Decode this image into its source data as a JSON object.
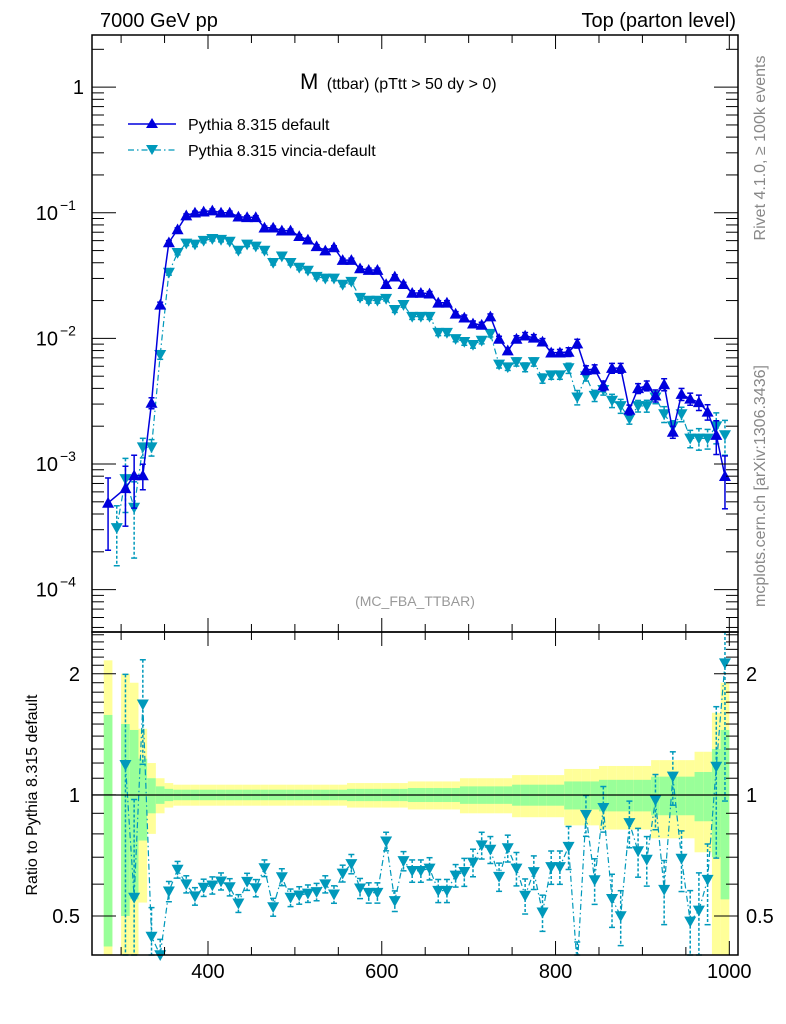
{
  "header": {
    "left": "7000 GeV pp",
    "right": "Top (parton level)"
  },
  "side_texts": {
    "rivet": "Rivet 4.1.0, ≥ 100k events",
    "mcplots": "mcplots.cern.ch [arXiv:1306.3436]"
  },
  "chart_data": {
    "type": "line",
    "title_main": "M",
    "title_sub": "(ttbar) (pTtt > 50 dy > 0)",
    "analysis_label": "(MC_FBA_TTBAR)",
    "xlabel": "",
    "ylabel": "",
    "ratio_ylabel": "Ratio to Pythia 8.315 default",
    "xlim": [
      266.5,
      1010
    ],
    "ylim": [
      4.6e-05,
      2.6
    ],
    "yscale": "log",
    "ratio_ylim": [
      0.4,
      2.54
    ],
    "x_ticks": [
      400,
      600,
      800,
      1000
    ],
    "x_tick_labels": [
      "400",
      "600",
      "800",
      "1000"
    ],
    "y_ticks": [
      1,
      0.1,
      0.01,
      0.001,
      0.0001
    ],
    "y_tick_labels": [
      {
        "base": "1",
        "exp": ""
      },
      {
        "base": "10",
        "exp": "−1"
      },
      {
        "base": "10",
        "exp": "−2"
      },
      {
        "base": "10",
        "exp": "−3"
      },
      {
        "base": "10",
        "exp": "−4"
      }
    ],
    "ratio_ticks": [
      2,
      1,
      0.5
    ],
    "ratio_tick_labels": [
      "2",
      "1",
      "0.5"
    ],
    "legend_position": "top-left",
    "x": [
      285,
      295,
      305,
      315,
      325,
      335,
      345,
      355,
      365,
      375,
      385,
      395,
      405,
      415,
      425,
      435,
      445,
      455,
      465,
      475,
      485,
      495,
      505,
      515,
      525,
      535,
      545,
      555,
      565,
      575,
      585,
      595,
      605,
      615,
      625,
      635,
      645,
      655,
      665,
      675,
      685,
      695,
      705,
      715,
      725,
      735,
      745,
      755,
      765,
      775,
      785,
      795,
      805,
      815,
      825,
      835,
      845,
      855,
      865,
      875,
      885,
      895,
      905,
      915,
      925,
      935,
      945,
      955,
      965,
      975,
      985,
      995
    ],
    "series": [
      {
        "name": "Pythia 8.315 default",
        "color": "#0000dd",
        "marker": "triangle-up",
        "line": "solid",
        "values": [
          0.00049,
          null,
          0.00064,
          0.00081,
          0.00081,
          0.00306,
          0.0185,
          0.058,
          0.0736,
          0.095,
          0.1,
          0.102,
          0.104,
          0.1,
          0.1,
          0.093,
          0.092,
          0.092,
          0.076,
          0.076,
          0.072,
          0.072,
          0.065,
          0.061,
          0.054,
          0.05,
          0.053,
          0.042,
          0.042,
          0.036,
          0.035,
          0.035,
          0.027,
          0.031,
          0.027,
          0.023,
          0.023,
          0.0227,
          0.0192,
          0.0192,
          0.0157,
          0.0146,
          0.0131,
          0.0128,
          0.0149,
          0.0099,
          0.008,
          0.0099,
          0.0105,
          0.0101,
          0.0094,
          0.0077,
          0.0077,
          0.0078,
          0.0091,
          0.0056,
          0.0057,
          0.0042,
          0.0058,
          0.0058,
          0.0027,
          0.004,
          0.0042,
          0.0035,
          0.0043,
          0.0018,
          0.0036,
          0.0033,
          0.0031,
          0.0026,
          0.0017,
          0.0008
        ],
        "rel_err": [
          0.58,
          null,
          0.5,
          0.45,
          0.23,
          0.1,
          0.05,
          0.035,
          0.03,
          0.03,
          0.03,
          0.03,
          0.03,
          0.03,
          0.03,
          0.03,
          0.03,
          0.03,
          0.03,
          0.03,
          0.03,
          0.03,
          0.03,
          0.03,
          0.03,
          0.03,
          0.03,
          0.03,
          0.035,
          0.035,
          0.035,
          0.035,
          0.035,
          0.035,
          0.035,
          0.04,
          0.04,
          0.04,
          0.04,
          0.04,
          0.04,
          0.05,
          0.05,
          0.05,
          0.05,
          0.05,
          0.05,
          0.06,
          0.06,
          0.06,
          0.06,
          0.06,
          0.06,
          0.08,
          0.08,
          0.08,
          0.08,
          0.09,
          0.09,
          0.09,
          0.09,
          0.09,
          0.09,
          0.11,
          0.11,
          0.11,
          0.11,
          0.11,
          0.14,
          0.14,
          0.3,
          0.45
        ]
      },
      {
        "name": "Pythia 8.315 vincia-default",
        "color": "#0099bb",
        "marker": "triangle-down",
        "line": "dash-dot",
        "values": [
          null,
          0.00031,
          0.00076,
          0.00045,
          0.00136,
          0.00136,
          0.0074,
          0.0334,
          0.048,
          0.057,
          0.056,
          0.06,
          0.062,
          0.061,
          0.059,
          0.05,
          0.056,
          0.054,
          0.05,
          0.04,
          0.045,
          0.04,
          0.0366,
          0.0347,
          0.031,
          0.03,
          0.03,
          0.0268,
          0.0283,
          0.0211,
          0.02,
          0.02,
          0.0207,
          0.0169,
          0.0185,
          0.0149,
          0.0149,
          0.0149,
          0.0111,
          0.0111,
          0.0099,
          0.0094,
          0.0089,
          0.0096,
          0.0109,
          0.0062,
          0.0059,
          0.0065,
          0.0059,
          0.0065,
          0.0048,
          0.0051,
          0.0051,
          0.0058,
          0.0034,
          0.005,
          0.0035,
          0.0039,
          0.0032,
          0.0029,
          0.0023,
          0.0029,
          0.0029,
          0.0034,
          0.0025,
          0.002,
          0.0025,
          0.0016,
          0.0016,
          0.0016,
          0.002,
          0.0017
        ]
      }
    ],
    "bands": {
      "inner_color": "#99ff99",
      "outer_color": "#ffff99"
    }
  }
}
